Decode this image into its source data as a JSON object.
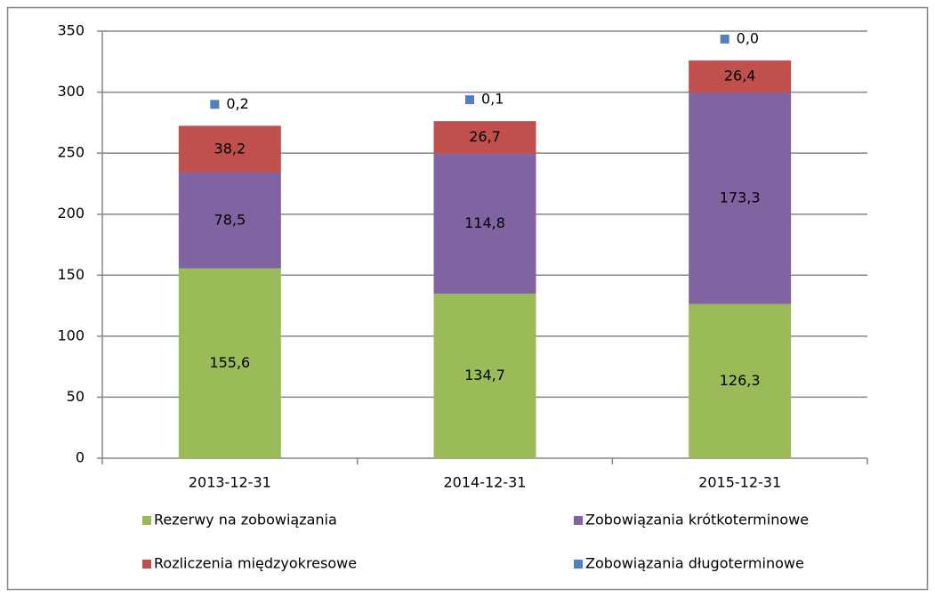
{
  "chart_data": {
    "type": "stacked_bar",
    "categories": [
      "2013-12-31",
      "2014-12-31",
      "2015-12-31"
    ],
    "series": [
      {
        "name": "Rezerwy na zobowiązania",
        "color": "#9bbb59",
        "values": [
          155.6,
          134.7,
          126.3
        ],
        "value_labels": [
          "155,6",
          "134,7",
          "126,3"
        ]
      },
      {
        "name": "Zobowiązania krótkoterminowe",
        "color": "#8064a2",
        "values": [
          78.5,
          114.8,
          173.3
        ],
        "value_labels": [
          "78,5",
          "114,8",
          "173,3"
        ]
      },
      {
        "name": "Rozliczenia międzyokresowe",
        "color": "#c0504d",
        "values": [
          38.2,
          26.7,
          26.4
        ],
        "value_labels": [
          "38,2",
          "26,7",
          "26,4"
        ]
      },
      {
        "name": "Zobowiązania długoterminowe",
        "color": "#4f81bd",
        "values": [
          0.2,
          0.1,
          0.0
        ],
        "value_labels": [
          "0,2",
          "0,1",
          "0,0"
        ]
      }
    ],
    "ylim": [
      0,
      350
    ],
    "yticks": [
      0,
      50,
      100,
      150,
      200,
      250,
      300,
      350
    ],
    "grid": true,
    "legend": "bottom"
  }
}
